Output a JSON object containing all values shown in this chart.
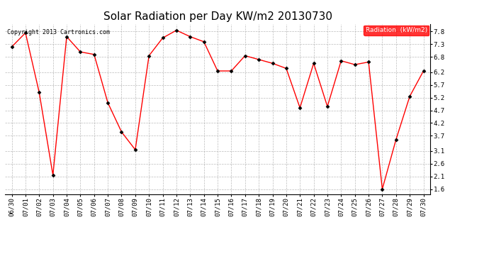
{
  "title": "Solar Radiation per Day KW/m2 20130730",
  "copyright_text": "Copyright 2013 Cartronics.com",
  "legend_label": "Radiation  (kW/m2)",
  "dates": [
    "06/30",
    "07/01",
    "07/02",
    "07/03",
    "07/04",
    "07/05",
    "07/06",
    "07/07",
    "07/08",
    "07/09",
    "07/10",
    "07/11",
    "07/12",
    "07/13",
    "07/14",
    "07/15",
    "07/16",
    "07/17",
    "07/18",
    "07/19",
    "07/20",
    "07/21",
    "07/22",
    "07/23",
    "07/24",
    "07/25",
    "07/26",
    "07/27",
    "07/28",
    "07/29",
    "07/30"
  ],
  "values": [
    7.2,
    7.75,
    5.4,
    2.15,
    7.6,
    7.0,
    6.9,
    5.0,
    3.85,
    3.15,
    6.85,
    7.55,
    7.85,
    7.6,
    7.4,
    6.25,
    6.25,
    6.85,
    6.7,
    6.55,
    6.35,
    4.8,
    6.55,
    4.85,
    6.65,
    6.5,
    6.6,
    1.6,
    3.55,
    5.25,
    6.25
  ],
  "line_color": "red",
  "marker": "D",
  "marker_color": "black",
  "marker_size": 2.5,
  "line_width": 1.0,
  "background_color": "#ffffff",
  "plot_bg_color": "#ffffff",
  "grid_color": "#aaaaaa",
  "ylim": [
    1.4,
    8.1
  ],
  "yticks": [
    1.6,
    2.1,
    2.6,
    3.1,
    3.7,
    4.2,
    4.7,
    5.2,
    5.7,
    6.2,
    6.8,
    7.3,
    7.8
  ],
  "title_fontsize": 11,
  "tick_fontsize": 6.5,
  "legend_bg": "#ff0000",
  "legend_text_color": "#ffffff"
}
